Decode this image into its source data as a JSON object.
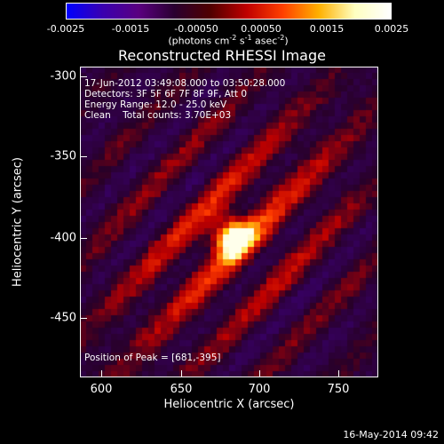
{
  "colorbar": {
    "ticks": [
      "-0.0025",
      "-0.0015",
      "-0.00050",
      "0.00050",
      "0.0015",
      "0.0025"
    ],
    "units_text": "(photons cm",
    "units_sup1": "-2",
    "units_mid": " s",
    "units_sup2": "-1",
    "units_mid2": " asec",
    "units_sup3": "-2",
    "units_end": ")",
    "colors": [
      "#0000ff",
      "#3a00b0",
      "#5a0080",
      "#2a0030",
      "#500000",
      "#c00000",
      "#ff4000",
      "#ffb000",
      "#ffffc0",
      "#ffffff"
    ]
  },
  "title": "Reconstructed RHESSI Image",
  "info": {
    "time_range": "17-Jun-2012 03:49:08.000 to 03:50:28.000",
    "detectors": "Detectors: 3F 5F 6F 7F 8F 9F, Att 0",
    "energy_range": "Energy Range: 12.0 - 25.0 keV",
    "clean": "Clean    Total counts: 3.70E+03"
  },
  "peak": "Position of Peak = [681,-395]",
  "axes": {
    "xlabel": "Heliocentric X (arcsec)",
    "ylabel": "Heliocentric Y (arcsec)",
    "xticks": [
      "600",
      "650",
      "700",
      "750"
    ],
    "yticks": [
      "-300",
      "-350",
      "-400",
      "-450"
    ]
  },
  "datestamp": "16-May-2014 09:42"
}
